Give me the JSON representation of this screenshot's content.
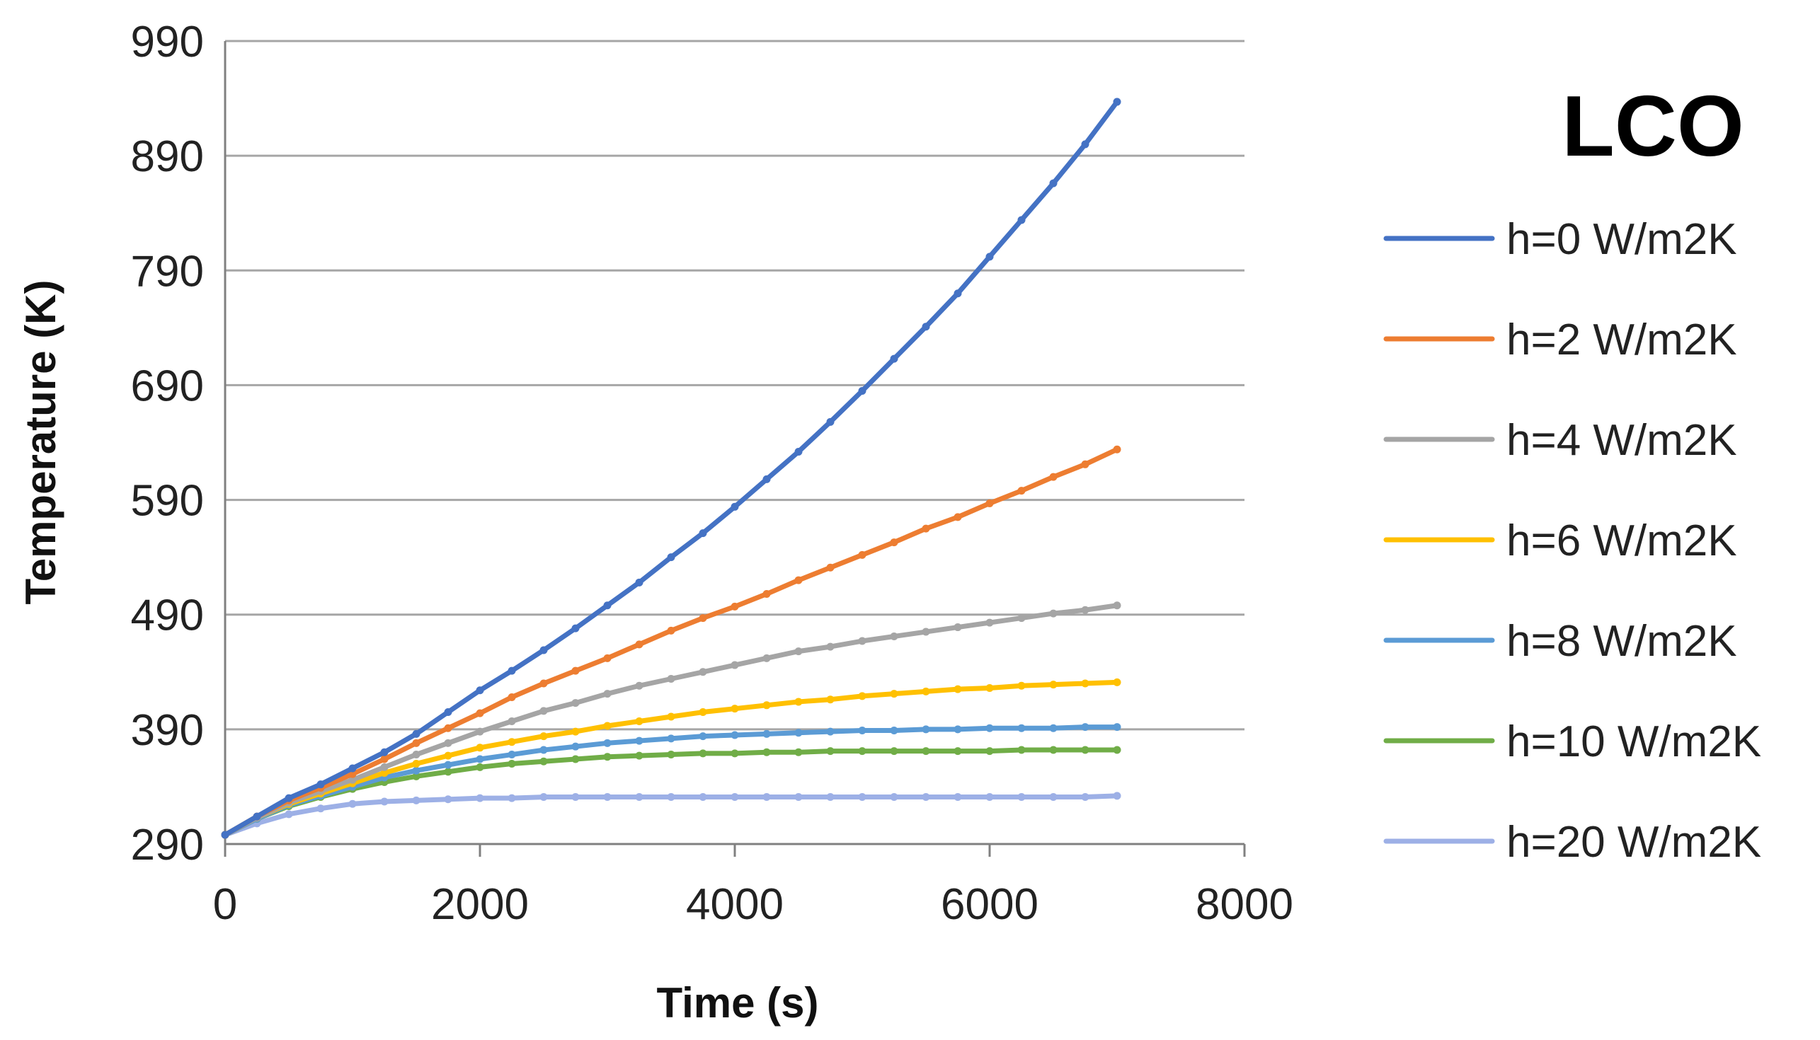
{
  "chart_data": {
    "type": "line",
    "title": "LCO",
    "xlabel": "Time (s)",
    "ylabel": "Temperature (K)",
    "xlim": [
      0,
      8000
    ],
    "ylim": [
      290,
      990
    ],
    "xticks": [
      0,
      2000,
      4000,
      6000,
      8000
    ],
    "yticks": [
      290,
      390,
      490,
      590,
      690,
      790,
      890,
      990
    ],
    "grid": "horizontal",
    "legend_position": "right",
    "x": [
      0,
      250,
      500,
      750,
      1000,
      1250,
      1500,
      1750,
      2000,
      2250,
      2500,
      2750,
      3000,
      3250,
      3500,
      3750,
      4000,
      4250,
      4500,
      4750,
      5000,
      5250,
      5500,
      5750,
      6000,
      6250,
      6500,
      6750,
      7000
    ],
    "series": [
      {
        "name": "h=0 W/m2K",
        "color": "#4472C4",
        "values": [
          298,
          314,
          330,
          342,
          356,
          370,
          386,
          405,
          424,
          441,
          459,
          478,
          498,
          518,
          540,
          561,
          584,
          608,
          632,
          658,
          685,
          713,
          741,
          770,
          802,
          834,
          866,
          900,
          937
        ]
      },
      {
        "name": "h=2 W/m2K",
        "color": "#ED7D31",
        "values": [
          298,
          314,
          328,
          339,
          351,
          364,
          378,
          391,
          404,
          418,
          430,
          441,
          452,
          464,
          476,
          487,
          497,
          508,
          520,
          531,
          542,
          553,
          565,
          575,
          587,
          598,
          610,
          621,
          634
        ]
      },
      {
        "name": "h=4 W/m2K",
        "color": "#A5A5A5",
        "values": [
          298,
          313,
          326,
          336,
          346,
          357,
          368,
          378,
          388,
          397,
          406,
          413,
          421,
          428,
          434,
          440,
          446,
          452,
          458,
          462,
          467,
          471,
          475,
          479,
          483,
          487,
          491,
          494,
          498
        ]
      },
      {
        "name": "h=6 W/m2K",
        "color": "#FFC000",
        "values": [
          298,
          313,
          325,
          334,
          343,
          352,
          360,
          367,
          374,
          379,
          384,
          388,
          393,
          397,
          401,
          405,
          408,
          411,
          414,
          416,
          419,
          421,
          423,
          425,
          426,
          428,
          429,
          430,
          431
        ]
      },
      {
        "name": "h=8 W/m2K",
        "color": "#5B9BD5",
        "values": [
          298,
          312,
          324,
          332,
          340,
          348,
          354,
          359,
          364,
          368,
          372,
          375,
          378,
          380,
          382,
          384,
          385,
          386,
          387,
          388,
          389,
          389,
          390,
          390,
          391,
          391,
          391,
          392,
          392
        ]
      },
      {
        "name": "h=10 W/m2K",
        "color": "#70AD47",
        "values": [
          298,
          312,
          323,
          331,
          338,
          344,
          349,
          353,
          357,
          360,
          362,
          364,
          366,
          367,
          368,
          369,
          369,
          370,
          370,
          371,
          371,
          371,
          371,
          371,
          371,
          372,
          372,
          372,
          372
        ]
      },
      {
        "name": "h=20 W/m2K",
        "color": "#9DB0E6",
        "values": [
          298,
          308,
          316,
          321,
          325,
          327,
          328,
          329,
          330,
          330,
          331,
          331,
          331,
          331,
          331,
          331,
          331,
          331,
          331,
          331,
          331,
          331,
          331,
          331,
          331,
          331,
          331,
          331,
          332
        ]
      }
    ]
  }
}
